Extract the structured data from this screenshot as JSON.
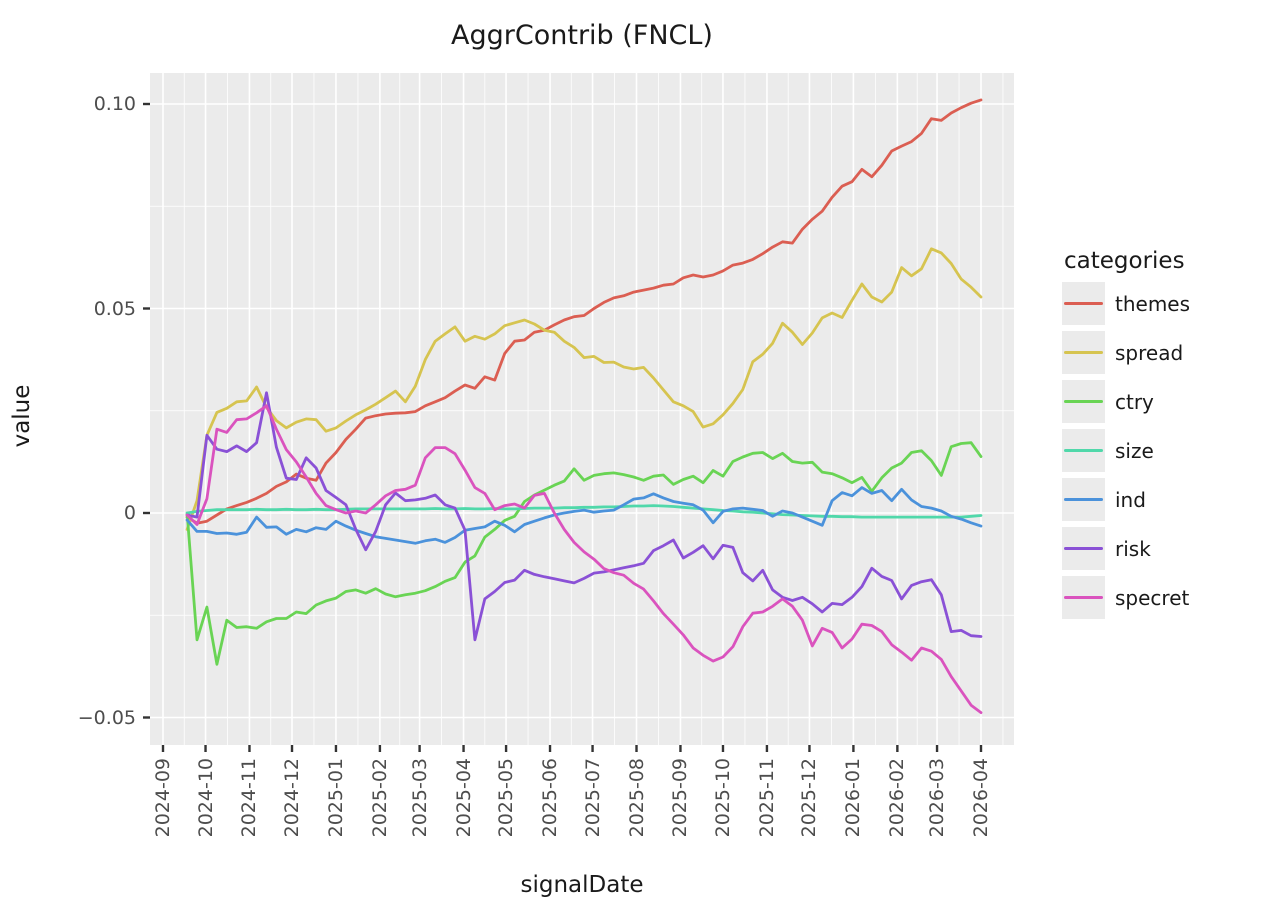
{
  "title": "AggrContrib (FNCL)",
  "x_axis": {
    "label": "signalDate"
  },
  "y_axis": {
    "label": "value"
  },
  "legend": {
    "title": "categories"
  },
  "panel_background": "#ebebeb",
  "gridline_color": "#ffffff",
  "chart_data": {
    "type": "line",
    "title": "AggrContrib (FNCL)",
    "xlabel": "signalDate",
    "ylabel": "value",
    "legend_title": "categories",
    "legend_position": "right",
    "grid": "white major+minor gridlines on grey panel",
    "ylim": [
      -0.0567,
      0.1076
    ],
    "y_ticks": [
      {
        "label": "0.10",
        "value": 0.1
      },
      {
        "label": "0.05",
        "value": 0.05
      },
      {
        "label": "0",
        "value": 0.0
      },
      {
        "label": "−0.05",
        "value": -0.05
      }
    ],
    "y_minor": [
      0.075,
      0.025,
      -0.025
    ],
    "x_tick_labels": [
      "2024-09",
      "2024-10",
      "2024-11",
      "2024-12",
      "2025-01",
      "2025-02",
      "2025-03",
      "2025-04",
      "2025-05",
      "2025-06",
      "2025-07",
      "2025-08",
      "2025-09",
      "2025-10",
      "2025-11",
      "2025-12",
      "2026-01",
      "2026-02",
      "2026-03",
      "2026-04"
    ],
    "x": [
      "2024-09-18",
      "2024-09-25",
      "2024-10-02",
      "2024-10-09",
      "2024-10-16",
      "2024-10-23",
      "2024-10-30",
      "2024-11-06",
      "2024-11-13",
      "2024-11-20",
      "2024-11-27",
      "2024-12-04",
      "2024-12-11",
      "2024-12-18",
      "2024-12-25",
      "2025-01-01",
      "2025-01-08",
      "2025-01-15",
      "2025-01-22",
      "2025-01-29",
      "2025-02-05",
      "2025-02-12",
      "2025-02-19",
      "2025-02-26",
      "2025-03-05",
      "2025-03-12",
      "2025-03-19",
      "2025-03-26",
      "2025-04-02",
      "2025-04-09",
      "2025-04-16",
      "2025-04-23",
      "2025-04-30",
      "2025-05-07",
      "2025-05-14",
      "2025-05-21",
      "2025-05-28",
      "2025-06-04",
      "2025-06-11",
      "2025-06-18",
      "2025-06-25",
      "2025-07-02",
      "2025-07-09",
      "2025-07-16",
      "2025-07-23",
      "2025-07-30",
      "2025-08-06",
      "2025-08-13",
      "2025-08-20",
      "2025-08-27",
      "2025-09-03",
      "2025-09-10",
      "2025-09-17",
      "2025-09-24",
      "2025-10-01",
      "2025-10-08",
      "2025-10-15",
      "2025-10-22",
      "2025-10-29",
      "2025-11-05",
      "2025-11-12",
      "2025-11-19",
      "2025-11-26",
      "2025-12-03",
      "2025-12-10",
      "2025-12-17",
      "2025-12-24",
      "2025-12-31",
      "2026-01-07",
      "2026-01-14",
      "2026-01-21",
      "2026-01-28",
      "2026-02-04",
      "2026-02-11",
      "2026-02-18",
      "2026-02-25",
      "2026-03-04",
      "2026-03-11",
      "2026-03-18",
      "2026-03-25",
      "2026-04-01"
    ],
    "series": [
      {
        "name": "themes",
        "color": "#db5e52",
        "values": [
          -0.001,
          -0.0025,
          -0.002,
          -0.0005,
          0.001,
          0.0018,
          0.0026,
          0.0036,
          0.0048,
          0.0065,
          0.0076,
          0.0095,
          0.0085,
          0.008,
          0.0122,
          0.0148,
          0.018,
          0.0205,
          0.0232,
          0.0238,
          0.0242,
          0.0244,
          0.0245,
          0.0248,
          0.0262,
          0.0272,
          0.0282,
          0.0298,
          0.0313,
          0.0305,
          0.0333,
          0.0325,
          0.039,
          0.042,
          0.0423,
          0.0442,
          0.0447,
          0.046,
          0.0472,
          0.048,
          0.0483,
          0.05,
          0.0515,
          0.0526,
          0.0531,
          0.054,
          0.0545,
          0.055,
          0.0557,
          0.056,
          0.0575,
          0.0582,
          0.0577,
          0.0582,
          0.0592,
          0.0606,
          0.0611,
          0.062,
          0.0634,
          0.065,
          0.0663,
          0.066,
          0.0694,
          0.0718,
          0.0738,
          0.0772,
          0.0799,
          0.081,
          0.084,
          0.0822,
          0.085,
          0.0885,
          0.0897,
          0.0908,
          0.0928,
          0.0964,
          0.096,
          0.0978,
          0.0991,
          0.1002,
          0.101
        ]
      },
      {
        "name": "spread",
        "color": "#d6c450",
        "values": [
          -0.004,
          0.003,
          0.019,
          0.0246,
          0.0256,
          0.0272,
          0.0274,
          0.0308,
          0.0258,
          0.0226,
          0.0208,
          0.0222,
          0.023,
          0.0228,
          0.02,
          0.0208,
          0.0225,
          0.024,
          0.0252,
          0.0266,
          0.0282,
          0.0298,
          0.0272,
          0.031,
          0.0375,
          0.042,
          0.0438,
          0.0455,
          0.042,
          0.0432,
          0.0425,
          0.0438,
          0.0458,
          0.0465,
          0.0472,
          0.0462,
          0.0447,
          0.0442,
          0.042,
          0.0405,
          0.038,
          0.0383,
          0.0368,
          0.0369,
          0.0357,
          0.0352,
          0.0356,
          0.033,
          0.0301,
          0.0272,
          0.0262,
          0.0248,
          0.021,
          0.0218,
          0.024,
          0.0268,
          0.0302,
          0.037,
          0.0388,
          0.0415,
          0.0464,
          0.0442,
          0.0412,
          0.044,
          0.0477,
          0.0489,
          0.0478,
          0.052,
          0.056,
          0.0528,
          0.0516,
          0.054,
          0.06,
          0.058,
          0.0597,
          0.0646,
          0.0636,
          0.061,
          0.0572,
          0.0552,
          0.0528
        ]
      },
      {
        "name": "ctry",
        "color": "#69d454",
        "values": [
          0.0,
          -0.031,
          -0.023,
          -0.037,
          -0.0262,
          -0.028,
          -0.0278,
          -0.0282,
          -0.0266,
          -0.0258,
          -0.0258,
          -0.0242,
          -0.0246,
          -0.0225,
          -0.0215,
          -0.0208,
          -0.0192,
          -0.0188,
          -0.0196,
          -0.0185,
          -0.0198,
          -0.0205,
          -0.02,
          -0.0196,
          -0.019,
          -0.018,
          -0.0167,
          -0.0158,
          -0.012,
          -0.0105,
          -0.0059,
          -0.004,
          -0.0018,
          -0.0008,
          0.0028,
          0.0044,
          0.0056,
          0.0068,
          0.0078,
          0.0108,
          0.008,
          0.0092,
          0.0096,
          0.0098,
          0.0094,
          0.0088,
          0.008,
          0.009,
          0.0093,
          0.007,
          0.0082,
          0.009,
          0.0074,
          0.0104,
          0.009,
          0.0126,
          0.0137,
          0.0146,
          0.0148,
          0.0133,
          0.0146,
          0.0126,
          0.0122,
          0.0124,
          0.01,
          0.0096,
          0.0086,
          0.0074,
          0.0087,
          0.0053,
          0.0086,
          0.011,
          0.0122,
          0.0148,
          0.0152,
          0.0128,
          0.0092,
          0.0162,
          0.017,
          0.0172,
          0.0138
        ]
      },
      {
        "name": "size",
        "color": "#50d8aa",
        "values": [
          0.0,
          0.0004,
          0.0006,
          0.0008,
          0.0008,
          0.0008,
          0.0008,
          0.0009,
          0.0008,
          0.0008,
          0.0009,
          0.0008,
          0.0008,
          0.0009,
          0.0008,
          0.0008,
          0.0009,
          0.001,
          0.001,
          0.001,
          0.001,
          0.001,
          0.001,
          0.001,
          0.001,
          0.0011,
          0.001,
          0.001,
          0.0011,
          0.001,
          0.001,
          0.0011,
          0.001,
          0.001,
          0.0011,
          0.0012,
          0.0012,
          0.0012,
          0.0013,
          0.0013,
          0.0014,
          0.0014,
          0.0015,
          0.0015,
          0.0016,
          0.0017,
          0.0017,
          0.0018,
          0.0017,
          0.0016,
          0.0014,
          0.0012,
          0.001,
          0.0008,
          0.0006,
          0.0005,
          0.0003,
          0.0002,
          0.0,
          -0.0002,
          -0.0004,
          -0.0005,
          -0.0006,
          -0.0007,
          -0.0008,
          -0.0008,
          -0.0009,
          -0.0009,
          -0.001,
          -0.001,
          -0.001,
          -0.001,
          -0.001,
          -0.001,
          -0.001,
          -0.001,
          -0.001,
          -0.001,
          -0.001,
          -0.0008,
          -0.0006
        ]
      },
      {
        "name": "ind",
        "color": "#4b92db",
        "values": [
          -0.0017,
          -0.0045,
          -0.0045,
          -0.005,
          -0.0049,
          -0.0052,
          -0.0047,
          -0.001,
          -0.0035,
          -0.0034,
          -0.0052,
          -0.004,
          -0.0046,
          -0.0036,
          -0.004,
          -0.002,
          -0.0032,
          -0.0042,
          -0.005,
          -0.0058,
          -0.0062,
          -0.0066,
          -0.007,
          -0.0074,
          -0.0068,
          -0.0064,
          -0.0072,
          -0.006,
          -0.0042,
          -0.0038,
          -0.0034,
          -0.002,
          -0.003,
          -0.0046,
          -0.0028,
          -0.002,
          -0.0012,
          -0.0005,
          0.0,
          0.0004,
          0.0007,
          0.0002,
          0.0005,
          0.0007,
          0.002,
          0.0034,
          0.0037,
          0.0047,
          0.0037,
          0.0028,
          0.0024,
          0.002,
          0.0007,
          -0.0024,
          0.0004,
          0.001,
          0.0012,
          0.0009,
          0.0006,
          -0.0008,
          0.0005,
          0.0,
          -0.001,
          -0.002,
          -0.003,
          0.003,
          0.005,
          0.0042,
          0.0062,
          0.0048,
          0.0055,
          0.003,
          0.0058,
          0.0032,
          0.0016,
          0.0012,
          0.0005,
          -0.0008,
          -0.0015,
          -0.0024,
          -0.0032
        ]
      },
      {
        "name": "risk",
        "color": "#8a51d6",
        "values": [
          -0.0005,
          -0.001,
          0.019,
          0.0156,
          0.015,
          0.0164,
          0.015,
          0.0172,
          0.0294,
          0.0161,
          0.0085,
          0.0082,
          0.0135,
          0.011,
          0.0055,
          0.0038,
          0.002,
          -0.004,
          -0.009,
          -0.0045,
          0.002,
          0.0049,
          0.003,
          0.0032,
          0.0036,
          0.0044,
          0.002,
          0.0012,
          -0.0042,
          -0.031,
          -0.021,
          -0.0192,
          -0.017,
          -0.0164,
          -0.014,
          -0.015,
          -0.0156,
          -0.0161,
          -0.0166,
          -0.0171,
          -0.016,
          -0.0147,
          -0.0144,
          -0.0139,
          -0.0134,
          -0.0129,
          -0.0123,
          -0.0092,
          -0.008,
          -0.0066,
          -0.011,
          -0.0096,
          -0.008,
          -0.0112,
          -0.0079,
          -0.0084,
          -0.0146,
          -0.0166,
          -0.014,
          -0.0188,
          -0.0206,
          -0.0214,
          -0.0206,
          -0.0222,
          -0.0242,
          -0.0221,
          -0.0224,
          -0.0206,
          -0.018,
          -0.0135,
          -0.0155,
          -0.0165,
          -0.021,
          -0.0177,
          -0.0168,
          -0.0163,
          -0.02,
          -0.029,
          -0.0287,
          -0.03,
          -0.0302
        ]
      },
      {
        "name": "specret",
        "color": "#da53be",
        "values": [
          -0.0005,
          -0.0028,
          0.0035,
          0.0205,
          0.0197,
          0.0228,
          0.023,
          0.0245,
          0.0262,
          0.0205,
          0.0155,
          0.0125,
          0.0088,
          0.0048,
          0.0018,
          0.0008,
          0.0,
          0.0005,
          0.0,
          0.002,
          0.0042,
          0.0055,
          0.0058,
          0.0068,
          0.0135,
          0.016,
          0.016,
          0.0145,
          0.0105,
          0.0062,
          0.0048,
          0.0008,
          0.0018,
          0.0022,
          0.0012,
          0.0043,
          0.0048,
          0.0,
          -0.004,
          -0.0072,
          -0.0095,
          -0.0113,
          -0.0136,
          -0.0146,
          -0.0152,
          -0.0172,
          -0.0186,
          -0.0215,
          -0.0246,
          -0.0272,
          -0.0298,
          -0.033,
          -0.0348,
          -0.0362,
          -0.0352,
          -0.0327,
          -0.0278,
          -0.0245,
          -0.0242,
          -0.0228,
          -0.021,
          -0.0228,
          -0.0262,
          -0.0325,
          -0.0282,
          -0.0292,
          -0.033,
          -0.0308,
          -0.0272,
          -0.0275,
          -0.029,
          -0.0322,
          -0.034,
          -0.036,
          -0.033,
          -0.0338,
          -0.0358,
          -0.04,
          -0.0435,
          -0.047,
          -0.0488
        ]
      }
    ]
  }
}
